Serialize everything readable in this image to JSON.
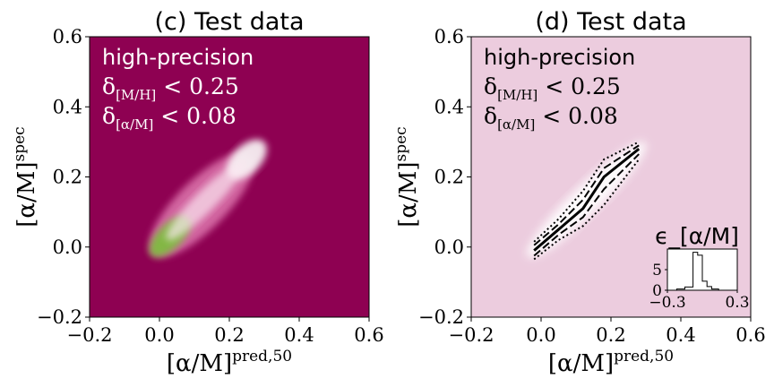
{
  "chart_data": [
    {
      "type": "heatmap",
      "title": "(c) Test data",
      "xlabel": {
        "base": "[α/M]",
        "sup": "pred,50"
      },
      "ylabel": {
        "base": "[α/M]",
        "sup": "spec"
      },
      "xlim": [
        -0.2,
        0.6
      ],
      "ylim": [
        -0.2,
        0.6
      ],
      "xticks": [
        "−0.2",
        "0.0",
        "0.2",
        "0.4",
        "0.6"
      ],
      "yticks": [
        "−0.2",
        "0.0",
        "0.2",
        "0.4",
        "0.6"
      ],
      "background_color": "#8e0152",
      "annotation": {
        "label": "high-precision",
        "cond1": {
          "sym": "δ",
          "sub": "[M/H]",
          "rel": " < 0.25"
        },
        "cond2": {
          "sym": "δ",
          "sub": "[α/M]",
          "rel": " < 0.08"
        },
        "color": "#ffffff"
      },
      "density_blobs": [
        {
          "x": 0.03,
          "y": 0.03,
          "sx": 0.075,
          "sy": 0.035,
          "angle": 45,
          "level": "peak"
        },
        {
          "x": 0.25,
          "y": 0.25,
          "sx": 0.07,
          "sy": 0.04,
          "angle": 45,
          "level": "high"
        },
        {
          "x": 0.12,
          "y": 0.12,
          "sx": 0.2,
          "sy": 0.07,
          "angle": 45,
          "level": "low"
        }
      ]
    },
    {
      "type": "line",
      "title": "(d) Test data",
      "xlabel": {
        "base": "[α/M]",
        "sup": "pred,50"
      },
      "ylabel": {
        "base": "[α/M]",
        "sup": "spec"
      },
      "xlim": [
        -0.2,
        0.6
      ],
      "ylim": [
        -0.2,
        0.6
      ],
      "xticks": [
        "−0.2",
        "0.0",
        "0.2",
        "0.4",
        "0.6"
      ],
      "yticks": [
        "−0.2",
        "0.0",
        "0.2",
        "0.4",
        "0.6"
      ],
      "background_color": "#ecccde",
      "annotation": {
        "label": "high-precision",
        "cond1": {
          "sym": "δ",
          "sub": "[M/H]",
          "rel": " < 0.25"
        },
        "cond2": {
          "sym": "δ",
          "sub": "[α/M]",
          "rel": " < 0.08"
        },
        "color": "#000000"
      },
      "series": [
        {
          "style": "solid",
          "x": [
            -0.02,
            0.05,
            0.12,
            0.18,
            0.28
          ],
          "y": [
            -0.01,
            0.05,
            0.11,
            0.2,
            0.28
          ]
        },
        {
          "style": "dashed",
          "x": [
            -0.02,
            0.05,
            0.12,
            0.18,
            0.28
          ],
          "y": [
            -0.025,
            0.035,
            0.085,
            0.165,
            0.265
          ]
        },
        {
          "style": "dashed",
          "x": [
            -0.02,
            0.05,
            0.12,
            0.18,
            0.28
          ],
          "y": [
            0.005,
            0.065,
            0.135,
            0.225,
            0.29
          ]
        },
        {
          "style": "dotted",
          "x": [
            -0.02,
            0.05,
            0.12,
            0.18,
            0.28
          ],
          "y": [
            -0.035,
            0.02,
            0.06,
            0.12,
            0.25
          ]
        },
        {
          "style": "dotted",
          "x": [
            -0.02,
            0.05,
            0.12,
            0.18,
            0.28
          ],
          "y": [
            0.015,
            0.08,
            0.16,
            0.25,
            0.3
          ]
        }
      ],
      "inset": {
        "type": "histogram",
        "title": "ϵ_[α/M]",
        "xlim": [
          -0.3,
          0.3
        ],
        "ylim": [
          0,
          10
        ],
        "xticks": [
          "−0.3",
          "0.3"
        ],
        "yticks": [
          "0",
          "5"
        ],
        "bins": [
          {
            "x0": -0.22,
            "x1": -0.15,
            "y": 0.3
          },
          {
            "x0": -0.15,
            "x1": -0.08,
            "y": 0.8
          },
          {
            "x0": -0.08,
            "x1": -0.04,
            "y": 9.2
          },
          {
            "x0": -0.04,
            "x1": 0.0,
            "y": 8.5
          },
          {
            "x0": 0.0,
            "x1": 0.04,
            "y": 2.2
          },
          {
            "x0": 0.04,
            "x1": 0.08,
            "y": 0.9
          },
          {
            "x0": 0.08,
            "x1": 0.14,
            "y": 0.3
          }
        ]
      }
    }
  ]
}
